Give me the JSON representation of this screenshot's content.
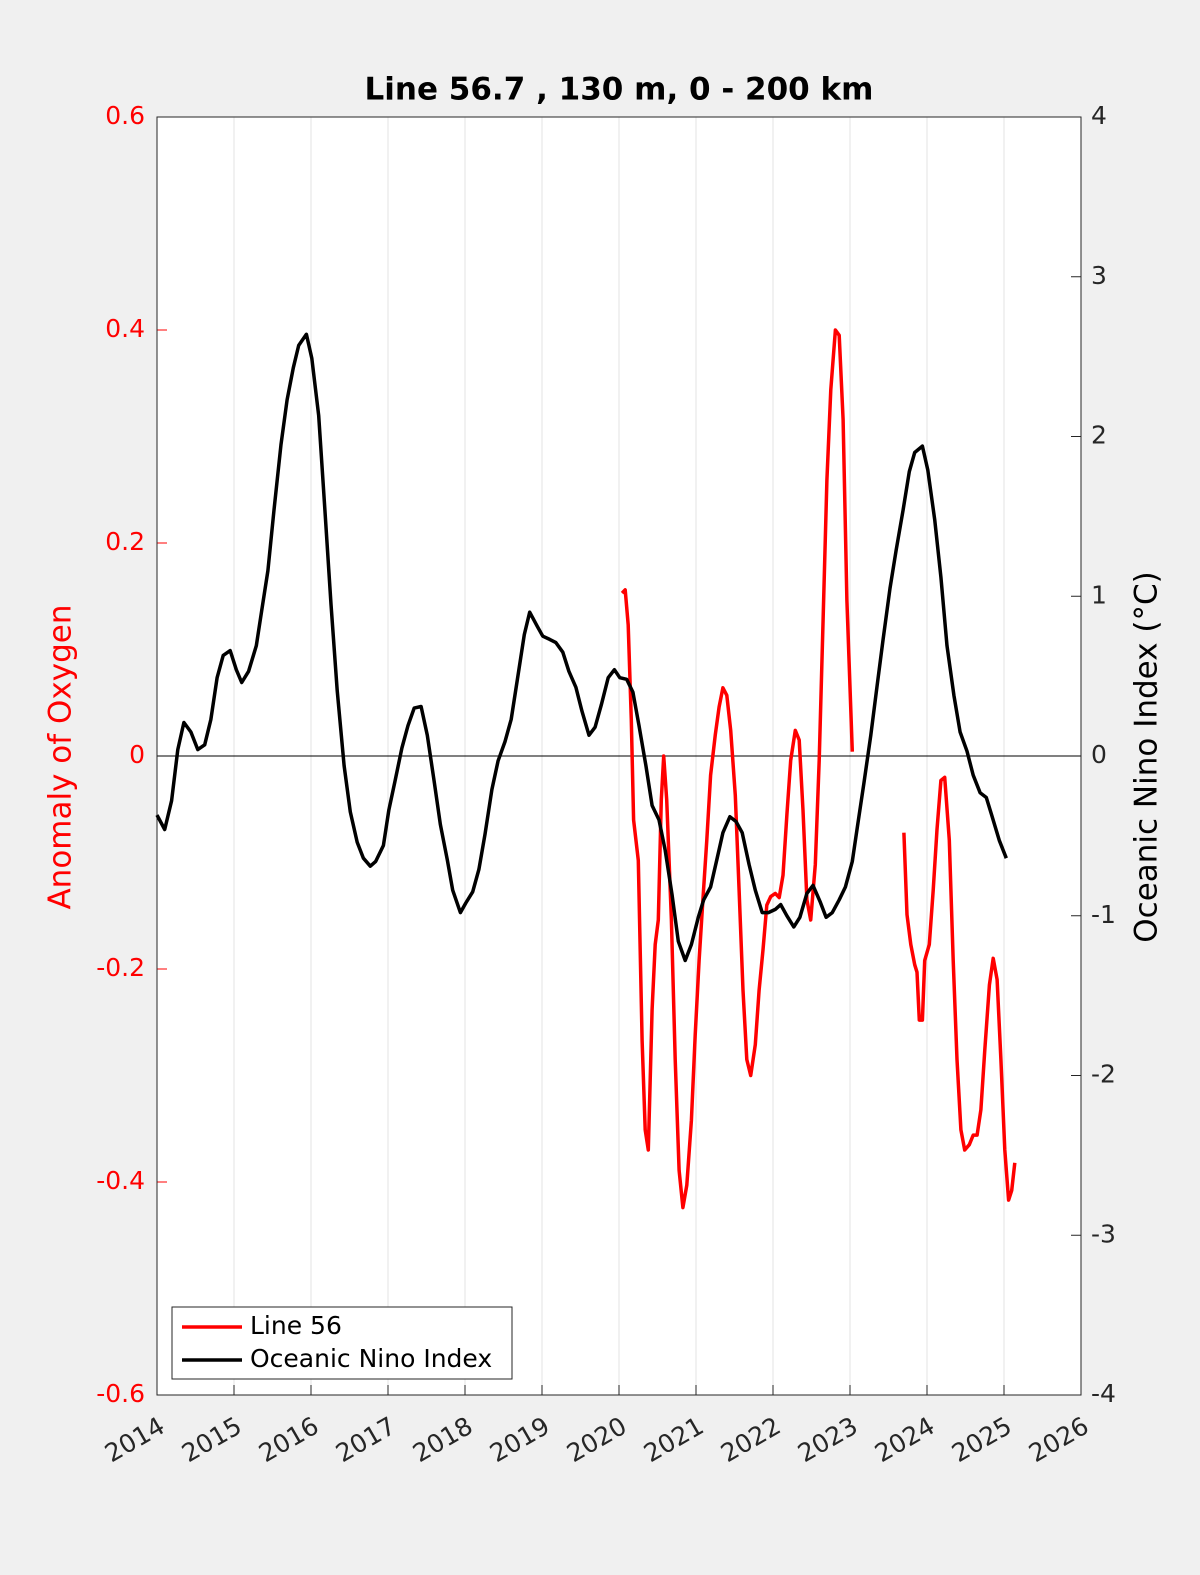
{
  "chart_data": {
    "type": "line",
    "title": "Line 56.7 , 130 m, 0 - 200 km",
    "ylabel": "Anomaly of Oxygen",
    "y2label": "Oceanic Nino Index (°C)",
    "xlim": [
      2014,
      2026
    ],
    "xticks": [
      2014,
      2015,
      2016,
      2017,
      2018,
      2019,
      2020,
      2021,
      2022,
      2023,
      2024,
      2025,
      2026
    ],
    "ylim": [
      -0.6,
      0.6
    ],
    "yticks": [
      -0.6,
      -0.4,
      -0.2,
      0,
      0.2,
      0.4,
      0.6
    ],
    "y2lim": [
      -4,
      4
    ],
    "y2ticks": [
      -4,
      -3,
      -2,
      -1,
      0,
      1,
      2,
      3,
      4
    ],
    "hline": 0,
    "grid": true,
    "legend": "lower left",
    "series": [
      {
        "name": "Line 56",
        "color": "#ff0000",
        "axis": "y",
        "x": [
          2020.04,
          2020.08,
          2020.12,
          2020.16,
          2020.19,
          2020.25,
          2020.3,
          2020.34,
          2020.38,
          2020.43,
          2020.47,
          2020.51,
          2020.55,
          2020.58,
          2020.62,
          2020.68,
          2020.73,
          2020.78,
          2020.83,
          2020.88,
          2020.94,
          2020.99,
          2021.04,
          2021.09,
          2021.14,
          2021.19,
          2021.25,
          2021.3,
          2021.35,
          2021.4,
          2021.45,
          2021.51,
          2021.56,
          2021.61,
          2021.66,
          2021.71,
          2021.77,
          2021.82,
          2021.87,
          2021.92,
          2021.97,
          2022.03,
          2022.08,
          2022.13,
          2022.18,
          2022.23,
          2022.29,
          2022.34,
          2022.39,
          2022.44,
          2022.49,
          2022.55,
          2022.6,
          2022.65,
          2022.7,
          2022.75,
          2022.81,
          2022.86,
          2022.91,
          2022.96,
          2023.03,
          2023.4,
          2023.7,
          2023.74,
          2023.79,
          2023.84,
          2023.87,
          2023.9,
          2023.94,
          2023.97,
          2024.03,
          2024.08,
          2024.13,
          2024.18,
          2024.23,
          2024.29,
          2024.34,
          2024.39,
          2024.44,
          2024.49,
          2024.55,
          2024.6,
          2024.65,
          2024.7,
          2024.75,
          2024.81,
          2024.86,
          2024.91,
          2024.96,
          2025.01,
          2025.06,
          2025.1,
          2025.14
        ],
        "values": [
          0.153,
          0.156,
          0.123,
          0.034,
          -0.06,
          -0.098,
          -0.267,
          -0.351,
          -0.37,
          -0.238,
          -0.177,
          -0.154,
          -0.041,
          0.0,
          -0.041,
          -0.154,
          -0.285,
          -0.389,
          -0.424,
          -0.403,
          -0.342,
          -0.262,
          -0.192,
          -0.135,
          -0.079,
          -0.018,
          0.02,
          0.046,
          0.064,
          0.057,
          0.024,
          -0.037,
          -0.126,
          -0.22,
          -0.285,
          -0.3,
          -0.271,
          -0.22,
          -0.182,
          -0.14,
          -0.132,
          -0.129,
          -0.133,
          -0.112,
          -0.055,
          -0.004,
          0.024,
          0.015,
          -0.051,
          -0.135,
          -0.154,
          -0.102,
          -0.004,
          0.128,
          0.259,
          0.344,
          0.4,
          0.395,
          0.316,
          0.146,
          0.004,
          null,
          -0.072,
          -0.149,
          -0.177,
          -0.196,
          -0.203,
          -0.248,
          -0.248,
          -0.192,
          -0.177,
          -0.126,
          -0.069,
          -0.023,
          -0.02,
          -0.079,
          -0.192,
          -0.285,
          -0.351,
          -0.37,
          -0.365,
          -0.356,
          -0.356,
          -0.332,
          -0.276,
          -0.215,
          -0.19,
          -0.21,
          -0.285,
          -0.37,
          -0.417,
          -0.408,
          -0.382
        ]
      },
      {
        "name": "Oceanic Nino Index",
        "color": "#000000",
        "axis": "y2",
        "x": [
          2014.0,
          2014.1,
          2014.19,
          2014.27,
          2014.35,
          2014.44,
          2014.53,
          2014.62,
          2014.7,
          2014.78,
          2014.86,
          2014.95,
          2015.03,
          2015.1,
          2015.19,
          2015.29,
          2015.36,
          2015.44,
          2015.52,
          2015.61,
          2015.69,
          2015.77,
          2015.84,
          2015.94,
          2016.01,
          2016.1,
          2016.18,
          2016.26,
          2016.34,
          2016.43,
          2016.51,
          2016.6,
          2016.68,
          2016.77,
          2016.84,
          2016.94,
          2017.01,
          2017.09,
          2017.18,
          2017.26,
          2017.34,
          2017.43,
          2017.51,
          2017.6,
          2017.68,
          2017.77,
          2017.84,
          2017.94,
          2018.01,
          2018.1,
          2018.18,
          2018.26,
          2018.35,
          2018.43,
          2018.52,
          2018.6,
          2018.68,
          2018.77,
          2018.84,
          2018.94,
          2019.01,
          2019.1,
          2019.18,
          2019.27,
          2019.35,
          2019.44,
          2019.52,
          2019.61,
          2019.69,
          2019.77,
          2019.86,
          2019.94,
          2020.01,
          2020.1,
          2020.18,
          2020.26,
          2020.35,
          2020.43,
          2020.52,
          2020.6,
          2020.69,
          2020.77,
          2020.86,
          2020.94,
          2021.03,
          2021.1,
          2021.19,
          2021.27,
          2021.35,
          2021.44,
          2021.52,
          2021.6,
          2021.69,
          2021.77,
          2021.86,
          2021.94,
          2022.03,
          2022.1,
          2022.18,
          2022.27,
          2022.35,
          2022.44,
          2022.52,
          2022.61,
          2022.69,
          2022.77,
          2022.86,
          2022.94,
          2023.03,
          2023.1,
          2023.18,
          2023.27,
          2023.35,
          2023.43,
          2023.52,
          2023.6,
          2023.69,
          2023.77,
          2023.84,
          2023.94,
          2024.01,
          2024.1,
          2024.18,
          2024.26,
          2024.35,
          2024.43,
          2024.52,
          2024.6,
          2024.69,
          2024.77,
          2024.84,
          2024.94,
          2025.03
        ],
        "values": [
          -0.37,
          -0.46,
          -0.28,
          0.04,
          0.21,
          0.15,
          0.04,
          0.07,
          0.23,
          0.49,
          0.63,
          0.66,
          0.54,
          0.46,
          0.53,
          0.69,
          0.91,
          1.16,
          1.54,
          1.95,
          2.23,
          2.43,
          2.57,
          2.64,
          2.49,
          2.13,
          1.54,
          0.95,
          0.41,
          -0.06,
          -0.35,
          -0.54,
          -0.64,
          -0.69,
          -0.66,
          -0.56,
          -0.34,
          -0.16,
          0.05,
          0.19,
          0.3,
          0.31,
          0.13,
          -0.16,
          -0.43,
          -0.65,
          -0.84,
          -0.98,
          -0.92,
          -0.85,
          -0.71,
          -0.49,
          -0.21,
          -0.03,
          0.09,
          0.23,
          0.48,
          0.76,
          0.9,
          0.81,
          0.75,
          0.73,
          0.71,
          0.65,
          0.53,
          0.43,
          0.28,
          0.13,
          0.18,
          0.32,
          0.49,
          0.54,
          0.49,
          0.48,
          0.4,
          0.19,
          -0.06,
          -0.31,
          -0.4,
          -0.59,
          -0.87,
          -1.16,
          -1.28,
          -1.18,
          -1.01,
          -0.9,
          -0.82,
          -0.65,
          -0.48,
          -0.38,
          -0.41,
          -0.48,
          -0.68,
          -0.84,
          -0.98,
          -0.98,
          -0.96,
          -0.93,
          -1.0,
          -1.07,
          -1.01,
          -0.86,
          -0.81,
          -0.91,
          -1.01,
          -0.98,
          -0.9,
          -0.82,
          -0.66,
          -0.43,
          -0.17,
          0.13,
          0.43,
          0.73,
          1.05,
          1.29,
          1.54,
          1.78,
          1.9,
          1.94,
          1.79,
          1.48,
          1.12,
          0.69,
          0.38,
          0.15,
          0.03,
          -0.12,
          -0.23,
          -0.26,
          -0.37,
          -0.53,
          -0.64
        ]
      }
    ]
  }
}
